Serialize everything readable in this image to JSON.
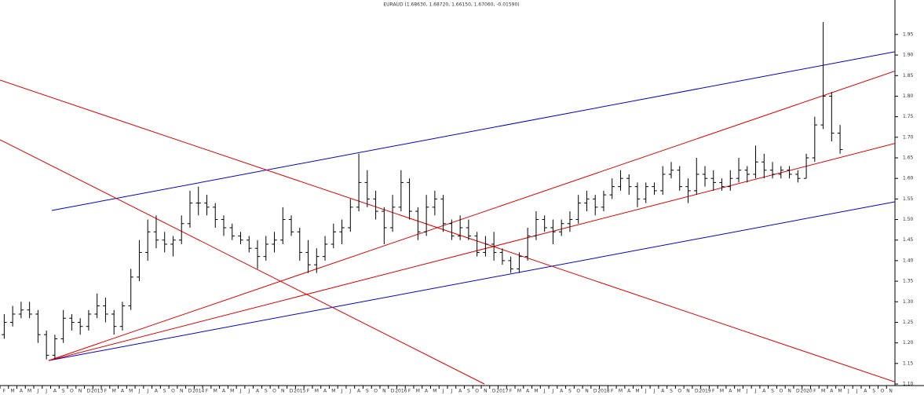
{
  "chart_data": {
    "type": "ohlc",
    "title": "EURAUD (1.68630, 1.68720, 1.66150, 1.67060, -0.01590)",
    "categories": [
      "F",
      "M",
      "A",
      "M",
      "J",
      "J",
      "A",
      "S",
      "O",
      "N",
      "D",
      "2013",
      "F",
      "M",
      "A",
      "M",
      "J",
      "J",
      "A",
      "S",
      "O",
      "N",
      "D",
      "2014",
      "F",
      "M",
      "A",
      "M",
      "J",
      "J",
      "A",
      "S",
      "O",
      "N",
      "D",
      "2015",
      "F",
      "M",
      "A",
      "M",
      "J",
      "J",
      "A",
      "S",
      "O",
      "N",
      "D",
      "2016",
      "F",
      "M",
      "A",
      "M",
      "J",
      "J",
      "A",
      "S",
      "O",
      "N",
      "D",
      "2017",
      "F",
      "M",
      "A",
      "M",
      "J",
      "J",
      "A",
      "S",
      "O",
      "N",
      "D",
      "2018",
      "F",
      "M",
      "A",
      "M",
      "J",
      "J",
      "A",
      "S",
      "O",
      "N",
      "D",
      "2019",
      "F",
      "M",
      "A",
      "M",
      "J",
      "J",
      "A",
      "S",
      "O",
      "N",
      "D",
      "2020",
      "F",
      "M",
      "A",
      "M",
      "J",
      "J",
      "A",
      "S",
      "O",
      "N"
    ],
    "open": [
      1.22,
      1.25,
      1.27,
      1.28,
      1.27,
      1.22,
      1.17,
      1.21,
      1.26,
      1.25,
      1.24,
      1.27,
      1.29,
      1.27,
      1.24,
      1.29,
      1.36,
      1.42,
      1.47,
      1.45,
      1.44,
      1.45,
      1.49,
      1.54,
      1.54,
      1.53,
      1.5,
      1.48,
      1.46,
      1.45,
      1.43,
      1.41,
      1.44,
      1.45,
      1.5,
      1.47,
      1.42,
      1.39,
      1.41,
      1.44,
      1.47,
      1.48,
      1.53,
      1.59,
      1.55,
      1.52,
      1.48,
      1.53,
      1.59,
      1.52,
      1.47,
      1.53,
      1.55,
      1.49,
      1.46,
      1.48,
      1.46,
      1.42,
      1.44,
      1.42,
      1.4,
      1.38,
      1.41,
      1.46,
      1.5,
      1.48,
      1.47,
      1.49,
      1.5,
      1.54,
      1.55,
      1.53,
      1.56,
      1.58,
      1.6,
      1.58,
      1.55,
      1.58,
      1.57,
      1.61,
      1.62,
      1.58,
      1.57,
      1.61,
      1.6,
      1.59,
      1.58,
      1.6,
      1.62,
      1.61,
      1.64,
      1.62,
      1.61,
      1.62,
      1.61,
      1.6,
      1.65,
      1.73,
      1.8,
      1.71,
      null,
      null,
      null,
      null,
      null,
      null
    ],
    "high": [
      1.27,
      1.29,
      1.3,
      1.3,
      1.28,
      1.23,
      1.22,
      1.28,
      1.27,
      1.26,
      1.28,
      1.32,
      1.31,
      1.28,
      1.3,
      1.38,
      1.45,
      1.5,
      1.51,
      1.47,
      1.46,
      1.51,
      1.57,
      1.58,
      1.56,
      1.54,
      1.51,
      1.49,
      1.47,
      1.46,
      1.45,
      1.46,
      1.47,
      1.53,
      1.51,
      1.48,
      1.45,
      1.43,
      1.46,
      1.49,
      1.5,
      1.55,
      1.66,
      1.62,
      1.57,
      1.53,
      1.56,
      1.62,
      1.6,
      1.53,
      1.56,
      1.57,
      1.56,
      1.5,
      1.51,
      1.5,
      1.47,
      1.46,
      1.47,
      1.43,
      1.41,
      1.42,
      1.48,
      1.52,
      1.51,
      1.5,
      1.5,
      1.52,
      1.56,
      1.57,
      1.56,
      1.57,
      1.6,
      1.62,
      1.61,
      1.59,
      1.59,
      1.59,
      1.63,
      1.64,
      1.63,
      1.6,
      1.65,
      1.63,
      1.62,
      1.6,
      1.62,
      1.65,
      1.63,
      1.68,
      1.66,
      1.64,
      1.63,
      1.63,
      1.62,
      1.66,
      1.75,
      1.98,
      1.81,
      1.73,
      null,
      null,
      null,
      null,
      null,
      null
    ],
    "low": [
      1.21,
      1.24,
      1.26,
      1.26,
      1.2,
      1.16,
      1.16,
      1.2,
      1.23,
      1.22,
      1.23,
      1.26,
      1.25,
      1.22,
      1.23,
      1.28,
      1.35,
      1.4,
      1.43,
      1.42,
      1.41,
      1.44,
      1.48,
      1.51,
      1.51,
      1.48,
      1.46,
      1.45,
      1.44,
      1.42,
      1.38,
      1.4,
      1.42,
      1.44,
      1.46,
      1.4,
      1.37,
      1.37,
      1.4,
      1.43,
      1.44,
      1.47,
      1.52,
      1.53,
      1.5,
      1.44,
      1.47,
      1.52,
      1.5,
      1.45,
      1.46,
      1.51,
      1.47,
      1.45,
      1.45,
      1.45,
      1.41,
      1.41,
      1.4,
      1.39,
      1.37,
      1.37,
      1.4,
      1.45,
      1.47,
      1.44,
      1.46,
      1.47,
      1.49,
      1.52,
      1.51,
      1.52,
      1.55,
      1.57,
      1.56,
      1.53,
      1.54,
      1.56,
      1.56,
      1.6,
      1.57,
      1.54,
      1.56,
      1.58,
      1.57,
      1.57,
      1.57,
      1.59,
      1.59,
      1.6,
      1.6,
      1.6,
      1.6,
      1.6,
      1.59,
      1.6,
      1.64,
      1.72,
      1.69,
      1.66,
      null,
      null,
      null,
      null,
      null,
      null
    ],
    "close": [
      1.25,
      1.27,
      1.28,
      1.27,
      1.22,
      1.17,
      1.21,
      1.26,
      1.25,
      1.24,
      1.27,
      1.29,
      1.27,
      1.24,
      1.29,
      1.36,
      1.42,
      1.47,
      1.45,
      1.44,
      1.45,
      1.49,
      1.54,
      1.54,
      1.53,
      1.5,
      1.48,
      1.46,
      1.45,
      1.43,
      1.41,
      1.44,
      1.45,
      1.5,
      1.47,
      1.42,
      1.39,
      1.41,
      1.44,
      1.47,
      1.48,
      1.53,
      1.59,
      1.55,
      1.52,
      1.48,
      1.53,
      1.59,
      1.52,
      1.47,
      1.53,
      1.55,
      1.49,
      1.46,
      1.48,
      1.46,
      1.42,
      1.44,
      1.42,
      1.4,
      1.38,
      1.41,
      1.46,
      1.5,
      1.48,
      1.47,
      1.49,
      1.5,
      1.54,
      1.55,
      1.53,
      1.56,
      1.58,
      1.6,
      1.58,
      1.55,
      1.58,
      1.57,
      1.61,
      1.62,
      1.58,
      1.57,
      1.61,
      1.6,
      1.59,
      1.58,
      1.6,
      1.62,
      1.61,
      1.64,
      1.62,
      1.61,
      1.62,
      1.61,
      1.6,
      1.65,
      1.73,
      1.8,
      1.71,
      1.67,
      null,
      null,
      null,
      null,
      null,
      null
    ],
    "color": "#000000",
    "ylim": [
      1.1,
      2.03
    ],
    "yticks": [
      {
        "value": 1.1,
        "label": "1.10"
      },
      1.15,
      {
        "value": 1.2,
        "label": "1.20"
      },
      1.25,
      {
        "value": 1.3,
        "label": "1.30"
      },
      1.35,
      {
        "value": 1.4,
        "label": "1.40"
      },
      1.45,
      {
        "value": 1.5,
        "label": "1.50"
      },
      1.55,
      {
        "value": 1.6,
        "label": "1.60"
      },
      1.65,
      {
        "value": 1.7,
        "label": "1.70"
      },
      1.75,
      {
        "value": 1.8,
        "label": "1.80"
      },
      1.85,
      {
        "value": 1.9,
        "label": "1.90"
      },
      1.95
    ],
    "trendlines": [
      {
        "color": "#0000cc",
        "x": [
          5.64,
          105.5
        ],
        "y": [
          1.522,
          1.908
        ]
      },
      {
        "color": "#0000cc",
        "x": [
          5.26,
          105.5
        ],
        "y": [
          1.157,
          1.543
        ]
      },
      {
        "color": "#dd0000",
        "x": [
          5.26,
          105.5
        ],
        "y": [
          1.157,
          1.861
        ]
      },
      {
        "color": "#dd0000",
        "x": [
          5.26,
          105.5
        ],
        "y": [
          1.157,
          1.685
        ]
      },
      {
        "color": "#dd0000",
        "x": [
          -0.5,
          105.5
        ],
        "y": [
          1.839,
          1.105
        ]
      },
      {
        "color": "#dd0000",
        "x": [
          -0.5,
          56.87
        ],
        "y": [
          1.694,
          1.1
        ]
      }
    ]
  }
}
